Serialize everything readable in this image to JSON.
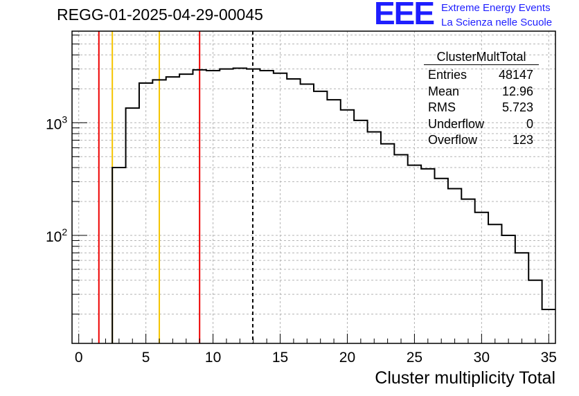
{
  "title": "REGG-01-2025-04-29-00045",
  "logo": {
    "mark": "EEE",
    "line1": "Extreme Energy Events",
    "line2": "La Scienza nelle Scuole",
    "color": "#1e1eff"
  },
  "stats_box": {
    "name": "ClusterMultTotal",
    "rows": [
      {
        "label": "Entries",
        "value": "48147"
      },
      {
        "label": "Mean",
        "value": "12.96"
      },
      {
        "label": "RMS",
        "value": "5.723"
      },
      {
        "label": "Underflow",
        "value": "0"
      },
      {
        "label": "Overflow",
        "value": "123"
      }
    ]
  },
  "chart_data": {
    "type": "histogram",
    "title": "REGG-01-2025-04-29-00045",
    "xlabel": "Cluster multiplicity Total",
    "ylabel": "",
    "xlim": [
      -0.5,
      35.5
    ],
    "ylim": [
      11,
      6500
    ],
    "yscale": "log",
    "grid": true,
    "bin_edges": [
      -0.5,
      0.5,
      1.5,
      2.5,
      3.5,
      4.5,
      5.5,
      6.5,
      7.5,
      8.5,
      9.5,
      10.5,
      11.5,
      12.5,
      13.5,
      14.5,
      15.5,
      16.5,
      17.5,
      18.5,
      19.5,
      20.5,
      21.5,
      22.5,
      23.5,
      24.5,
      25.5,
      26.5,
      27.5,
      28.5,
      29.5,
      30.5,
      31.5,
      32.5,
      33.5,
      34.5,
      35.5
    ],
    "values": [
      0,
      0,
      0,
      400,
      1350,
      2250,
      2400,
      2550,
      2700,
      2950,
      2900,
      3000,
      3050,
      3000,
      2900,
      2750,
      2450,
      2200,
      1900,
      1600,
      1300,
      1050,
      830,
      650,
      520,
      420,
      390,
      320,
      260,
      210,
      160,
      125,
      100,
      70,
      40,
      22
    ],
    "x_ticks": [
      0,
      5,
      10,
      15,
      20,
      25,
      30,
      35
    ],
    "x_tick_labels": [
      "0",
      "5",
      "10",
      "15",
      "20",
      "25",
      "30",
      "35"
    ],
    "y_major_ticks": [
      1000,
      100
    ],
    "y_tick_labels": [
      {
        "base": "10",
        "exp": "3"
      },
      {
        "base": "10",
        "exp": "2"
      }
    ],
    "vertical_lines": [
      {
        "x": 1.5,
        "color": "#ee0000",
        "style": "solid",
        "name": "red-line-1"
      },
      {
        "x": 2.5,
        "color": "#f5c400",
        "style": "solid",
        "name": "yellow-line-1"
      },
      {
        "x": 6.0,
        "color": "#f5c400",
        "style": "solid",
        "name": "yellow-line-2"
      },
      {
        "x": 9.0,
        "color": "#ee0000",
        "style": "solid",
        "name": "red-line-2"
      },
      {
        "x": 12.96,
        "color": "#000000",
        "style": "dashed",
        "name": "mean-line"
      }
    ]
  }
}
